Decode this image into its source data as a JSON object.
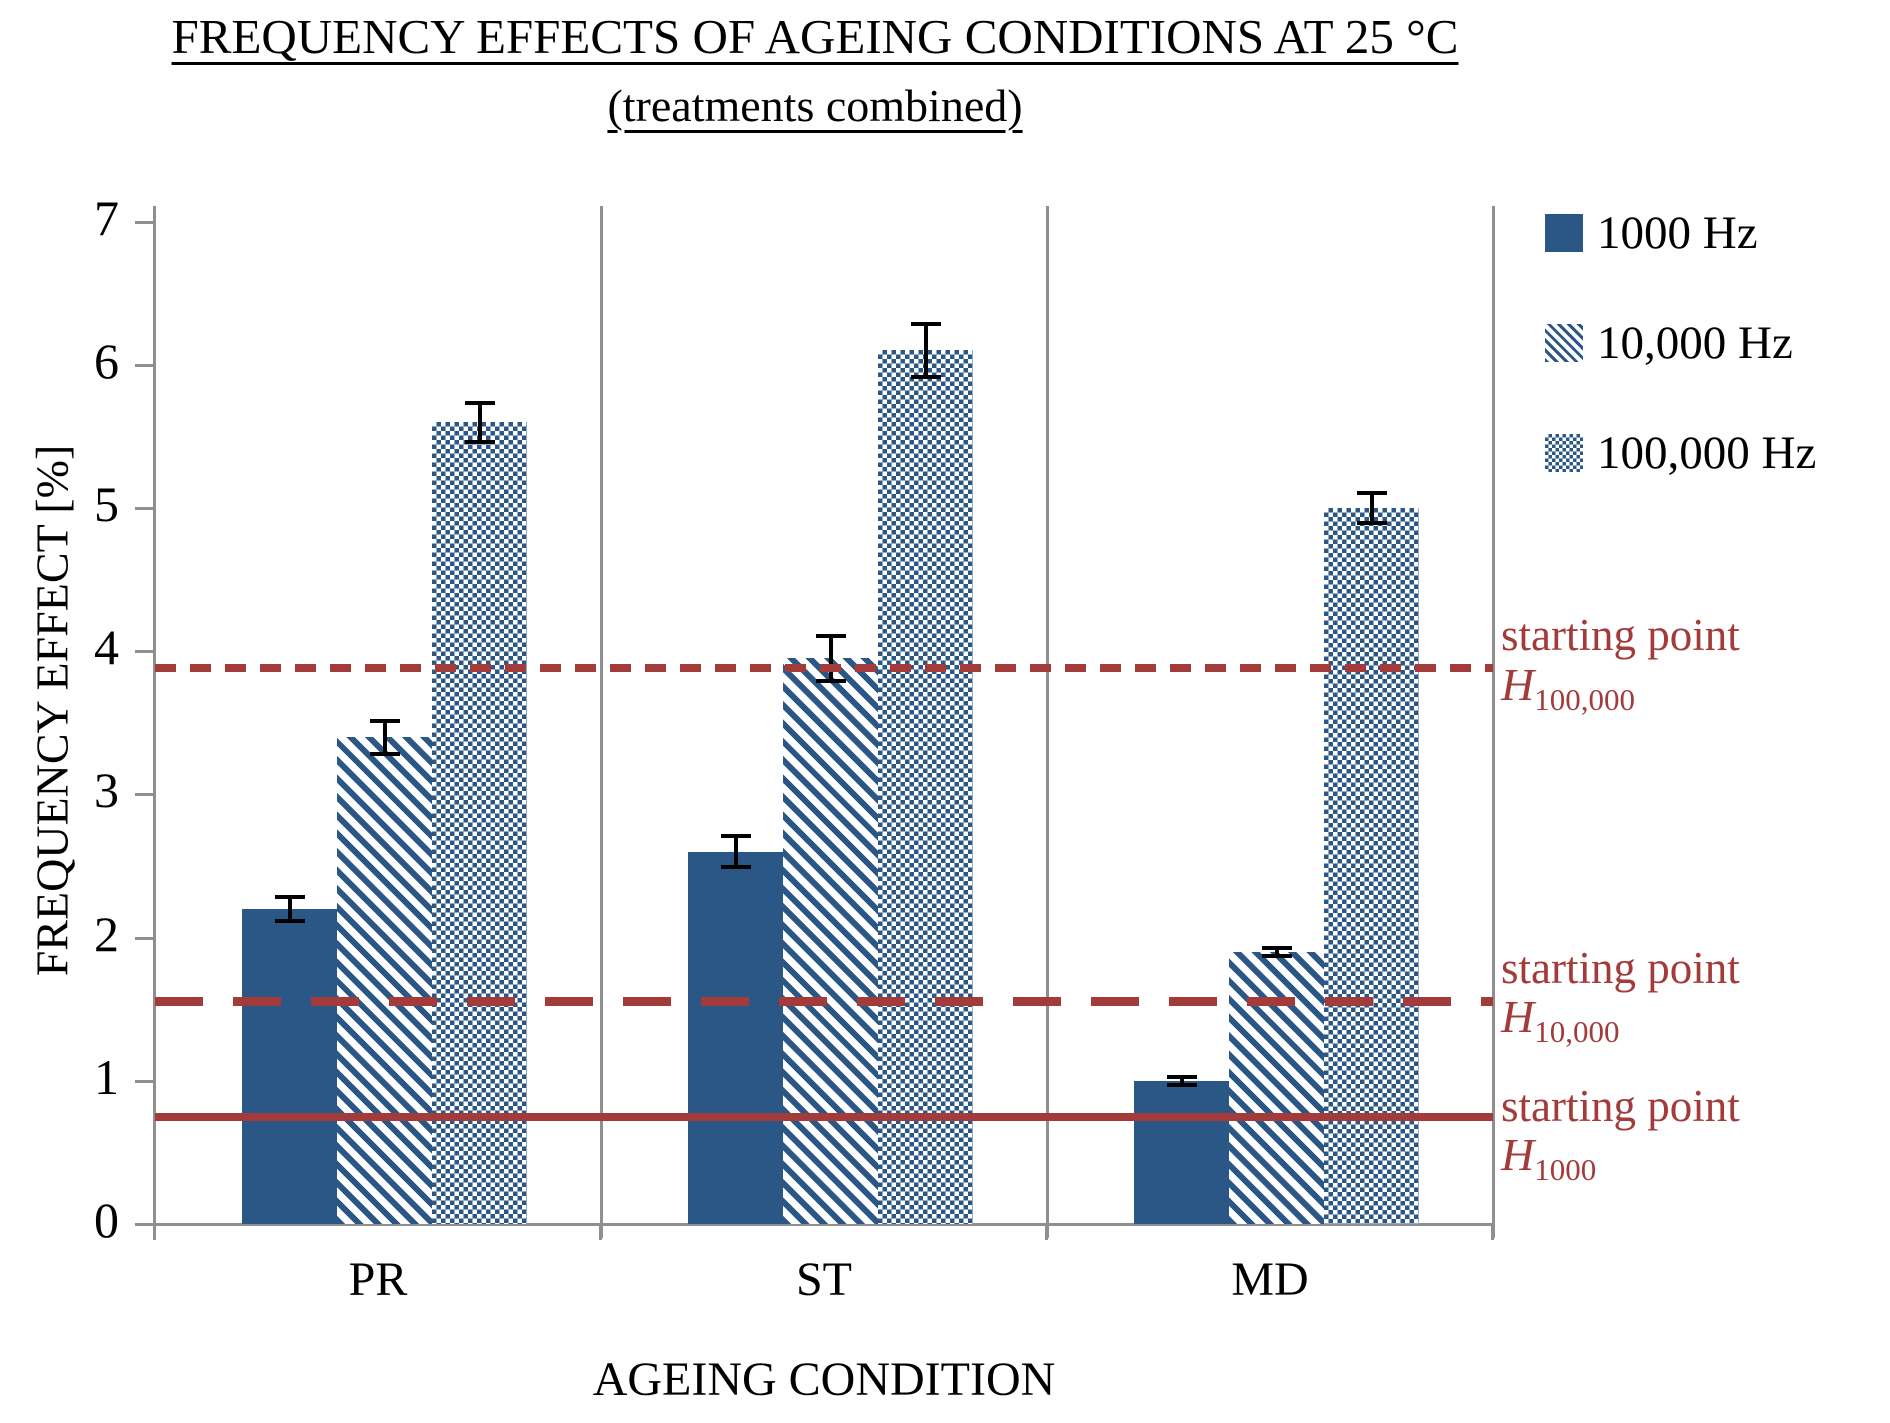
{
  "title": {
    "line1": "FREQUENCY EFFECTS OF AGEING CONDITIONS AT 25 °C",
    "line2": "(treatments combined)"
  },
  "chart_data": {
    "type": "bar",
    "title": "FREQUENCY EFFECTS OF AGEING CONDITIONS AT 25 °C",
    "subtitle": "(treatments combined)",
    "xlabel": "AGEING CONDITION",
    "ylabel": "FREQUENCY EFFECT [%]",
    "ylim": [
      0,
      7
    ],
    "yticks": [
      0,
      1,
      2,
      3,
      4,
      5,
      6,
      7
    ],
    "categories": [
      "PR",
      "ST",
      "MD"
    ],
    "series": [
      {
        "name": "1000 Hz",
        "pattern": "solid",
        "values": [
          2.2,
          2.6,
          1.0
        ],
        "errors": [
          0.1,
          0.12,
          0.04
        ]
      },
      {
        "name": "10,000 Hz",
        "pattern": "hatch",
        "values": [
          3.4,
          3.95,
          1.9
        ],
        "errors": [
          0.13,
          0.17,
          0.04
        ]
      },
      {
        "name": "100,000 Hz",
        "pattern": "dots",
        "values": [
          5.6,
          6.1,
          5.0
        ],
        "errors": [
          0.15,
          0.2,
          0.12
        ]
      }
    ],
    "reference_lines": [
      {
        "id": "h100000",
        "value": 3.88,
        "style": "shortdash",
        "label_line1": "starting point",
        "label_symbol": "H",
        "label_subscript": "100,000"
      },
      {
        "id": "h10000",
        "value": 1.56,
        "style": "longdash",
        "label_line1": "starting point",
        "label_symbol": "H",
        "label_subscript": "10,000"
      },
      {
        "id": "h1000",
        "value": 0.75,
        "style": "solid",
        "label_line1": "starting point",
        "label_symbol": "H",
        "label_subscript": "1000"
      }
    ],
    "legend_position": "right",
    "grid": "vertical-category-separators"
  },
  "colors": {
    "bar_blue": "#2B5786",
    "reference_red": "#A43B3B",
    "axis_gray": "#8F8F8F",
    "text_black": "#000000"
  }
}
